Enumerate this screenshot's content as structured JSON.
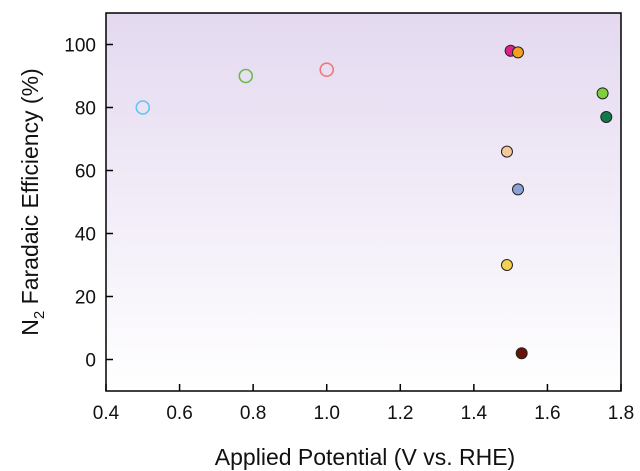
{
  "chart_data": {
    "type": "scatter",
    "title": "",
    "xlabel": "Applied Potential (V vs. RHE)",
    "ylabel_main": "N",
    "ylabel_sub": "2",
    "ylabel_rest": " Faradaic Efficiency (%)",
    "xlim": [
      0.4,
      1.8
    ],
    "ylim": [
      -10,
      110
    ],
    "xticks": [
      "0.4",
      "0.6",
      "0.8",
      "1.0",
      "1.2",
      "1.4",
      "1.6",
      "1.8"
    ],
    "yticks": [
      "0",
      "20",
      "40",
      "60",
      "80",
      "100"
    ],
    "xtick_values": [
      0.4,
      0.6,
      0.8,
      1.0,
      1.2,
      1.4,
      1.6,
      1.8
    ],
    "ytick_values": [
      0,
      20,
      40,
      60,
      80,
      100
    ],
    "grid": false,
    "background_gradient": [
      "#e4d9f0",
      "#ffffff"
    ],
    "points": [
      {
        "x": 0.5,
        "y": 80,
        "fill": "none",
        "stroke": "#5bc8f5"
      },
      {
        "x": 0.78,
        "y": 90,
        "fill": "none",
        "stroke": "#6cbb4a"
      },
      {
        "x": 1.0,
        "y": 92,
        "fill": "none",
        "stroke": "#f07878"
      },
      {
        "x": 1.5,
        "y": 98,
        "fill": "#e0208a",
        "stroke": "#222222"
      },
      {
        "x": 1.52,
        "y": 97.5,
        "fill": "#f5a020",
        "stroke": "#222222"
      },
      {
        "x": 1.75,
        "y": 84.5,
        "fill": "#7dcf3c",
        "stroke": "#222222"
      },
      {
        "x": 1.76,
        "y": 77,
        "fill": "#127a4a",
        "stroke": "#222222"
      },
      {
        "x": 1.49,
        "y": 66,
        "fill": "#f5c89a",
        "stroke": "#222222"
      },
      {
        "x": 1.52,
        "y": 54,
        "fill": "#8aa2d8",
        "stroke": "#222222"
      },
      {
        "x": 1.49,
        "y": 30,
        "fill": "#f5d050",
        "stroke": "#222222"
      },
      {
        "x": 1.53,
        "y": 2,
        "fill": "#6b1208",
        "stroke": "#222222"
      }
    ]
  }
}
